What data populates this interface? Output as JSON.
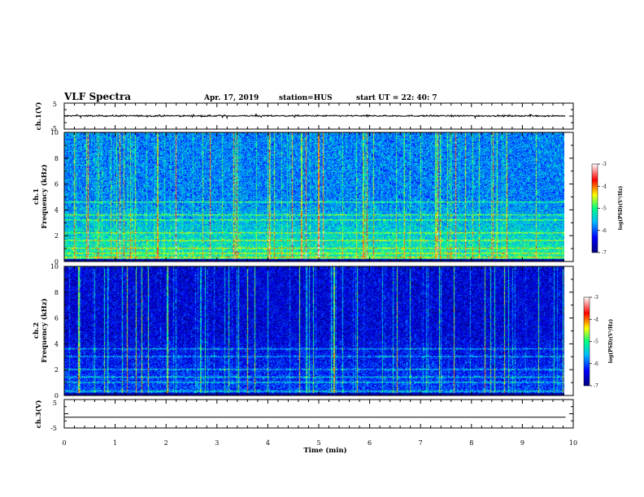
{
  "header": {
    "title": "VLF Spectra",
    "date": "Apr. 17, 2019",
    "station": "station=HUS",
    "start_ut": "start  UT =   22: 40: 7"
  },
  "chart_data": [
    {
      "type": "line",
      "name": "ch1_waveform",
      "ylabel": "ch.1(V)",
      "ylim": [
        -5,
        5
      ],
      "yticks": [
        "5",
        "-5"
      ],
      "xlim": [
        0,
        10
      ],
      "level": 0.1
    },
    {
      "type": "heatmap",
      "name": "ch1_spectrogram",
      "ylabel": "ch.1\nFrequency (kHz)",
      "ylim": [
        0,
        10
      ],
      "yticks": [
        "0",
        "2",
        "4",
        "6",
        "8",
        "10"
      ],
      "xlim": [
        0,
        10
      ],
      "colorbar": {
        "label": "log(PSD)(V²/Hz)",
        "range": [
          -7,
          -3
        ],
        "ticks": [
          "-3",
          "-4",
          "-5",
          "-6",
          "-7"
        ]
      },
      "bright_bands_khz": [
        0.3,
        0.6,
        1.0,
        1.6,
        2.2,
        3.2,
        3.6,
        4.6
      ]
    },
    {
      "type": "heatmap",
      "name": "ch2_spectrogram",
      "ylabel": "ch.2\nFrequency (kHz)",
      "ylim": [
        0,
        10
      ],
      "yticks": [
        "0",
        "2",
        "4",
        "6",
        "8",
        "10"
      ],
      "xlim": [
        0,
        10
      ],
      "colorbar": {
        "label": "log(PSD)(V²/Hz)",
        "range": [
          -7,
          -3
        ],
        "ticks": [
          "-3",
          "-4",
          "-5",
          "-6",
          "-7"
        ]
      },
      "bright_bands_khz": [
        0.3,
        1.0,
        1.4,
        2.0,
        3.0,
        3.6
      ]
    },
    {
      "type": "line",
      "name": "ch3_waveform",
      "ylabel": "ch.3(V)",
      "ylim": [
        -5,
        5
      ],
      "yticks": [
        "5",
        "-5"
      ],
      "xlim": [
        0,
        10
      ],
      "level": -1.2
    }
  ],
  "xaxis": {
    "label": "Time (min)",
    "ticks": [
      "0",
      "1",
      "2",
      "3",
      "4",
      "5",
      "6",
      "7",
      "8",
      "9",
      "10"
    ],
    "data_end_min": 9.85
  }
}
